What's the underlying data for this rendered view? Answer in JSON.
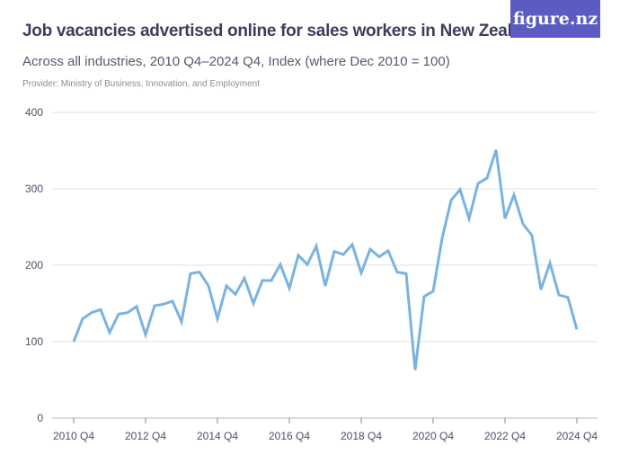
{
  "header": {
    "title": "Job vacancies advertised online for sales workers in New Zealand",
    "subtitle": "Across all industries, 2010 Q4–2024 Q4, Index (where Dec 2010 = 100)",
    "provider": "Provider: Ministry of Business, Innovation, and Employment",
    "logo": "figure.nz"
  },
  "colors": {
    "line": "#7ab3e0",
    "grid": "#e2e2e2",
    "logo_bg": "#5b5bc2"
  },
  "chart_data": {
    "type": "line",
    "title": "Job vacancies advertised online for sales workers in New Zealand",
    "xlabel": "",
    "ylabel": "",
    "ylim": [
      0,
      400
    ],
    "yticks": [
      0,
      100,
      200,
      300,
      400
    ],
    "xtick_labels": [
      "2010 Q4",
      "2012 Q4",
      "2014 Q4",
      "2016 Q4",
      "2018 Q4",
      "2020 Q4",
      "2022 Q4",
      "2024 Q4"
    ],
    "grid": true,
    "start": "2010 Q4",
    "end": "2024 Q4",
    "frequency": "quarterly",
    "values": [
      100,
      130,
      138,
      142,
      112,
      136,
      138,
      146,
      109,
      147,
      149,
      153,
      126,
      189,
      191,
      173,
      130,
      173,
      162,
      183,
      150,
      180,
      180,
      201,
      170,
      213,
      201,
      225,
      173,
      218,
      214,
      227,
      190,
      221,
      211,
      219,
      191,
      189,
      63,
      159,
      166,
      235,
      285,
      299,
      261,
      307,
      314,
      351,
      261,
      292,
      254,
      239,
      168,
      203,
      161,
      158,
      116
    ]
  }
}
